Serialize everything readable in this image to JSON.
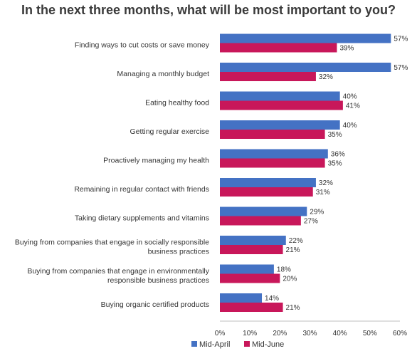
{
  "chart_data": {
    "type": "bar",
    "orientation": "horizontal",
    "title": "In the next three months, what will be most important to you?",
    "categories": [
      [
        "Finding ways to cut costs or save money"
      ],
      [
        "Managing a monthly budget"
      ],
      [
        "Eating healthy food"
      ],
      [
        "Getting regular exercise"
      ],
      [
        "Proactively managing my health"
      ],
      [
        "Remaining in regular contact with friends"
      ],
      [
        "Taking dietary supplements and vitamins"
      ],
      [
        "Buying from companies that engage in socially responsible",
        "business practices"
      ],
      [
        "Buying from companies that engage in environmentally",
        "responsible business practices"
      ],
      [
        "Buying organic certified products"
      ]
    ],
    "series": [
      {
        "name": "Mid-April",
        "color": "#4472c4",
        "values": [
          57,
          57,
          40,
          40,
          36,
          32,
          29,
          22,
          18,
          14
        ],
        "labels": [
          "57%",
          "57%",
          "40%",
          "40%",
          "36%",
          "32%",
          "29%",
          "22%",
          "18%",
          "14%"
        ]
      },
      {
        "name": "Mid-June",
        "color": "#c8175a",
        "values": [
          39,
          32,
          41,
          35,
          35,
          31,
          27,
          21,
          20,
          21
        ],
        "labels": [
          "39%",
          "32%",
          "41%",
          "35%",
          "35%",
          "31%",
          "27%",
          "21%",
          "20%",
          "21%"
        ]
      }
    ],
    "xlim": [
      0,
      60
    ],
    "xticks": [
      0,
      10,
      20,
      30,
      40,
      50,
      60
    ],
    "xtick_labels": [
      "0%",
      "10%",
      "20%",
      "30%",
      "40%",
      "50%",
      "60%"
    ],
    "grid": false,
    "legend": "bottom-center"
  }
}
